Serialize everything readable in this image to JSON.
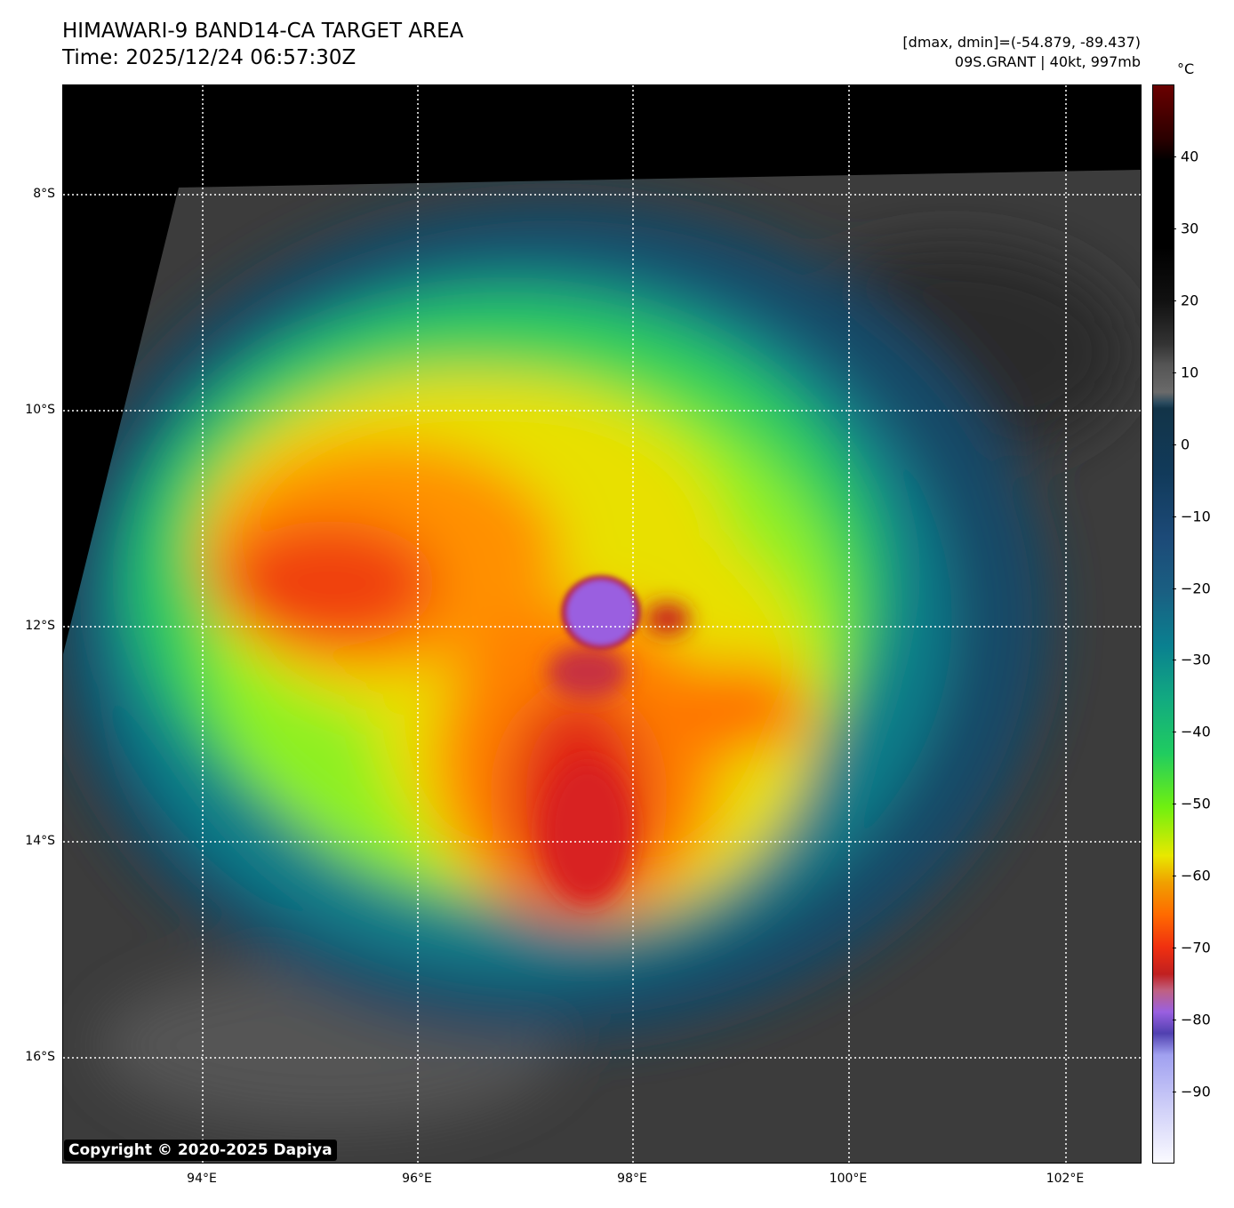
{
  "header": {
    "title": "HIMAWARI-9 BAND14-CA TARGET AREA",
    "time": "Time: 2025/12/24 06:57:30Z",
    "range": "[dmax, dmin]=(-54.879, -89.437)",
    "storm": "09S.GRANT | 40kt, 997mb"
  },
  "colorbar": {
    "unit": "°C",
    "ticks": [
      "40",
      "30",
      "20",
      "10",
      "0",
      "−10",
      "−20",
      "−30",
      "−40",
      "−50",
      "−60",
      "−70",
      "−80",
      "−90"
    ],
    "tick_values": [
      40,
      30,
      20,
      10,
      0,
      -10,
      -20,
      -30,
      -40,
      -50,
      -60,
      -70,
      -80,
      -90
    ],
    "min": -100,
    "max": 50
  },
  "axes": {
    "lat_labels": [
      "8°S",
      "10°S",
      "12°S",
      "14°S",
      "16°S"
    ],
    "lat_values": [
      -8,
      -10,
      -12,
      -14,
      -16
    ],
    "lon_labels": [
      "94°E",
      "96°E",
      "98°E",
      "100°E",
      "102°E"
    ],
    "lon_values": [
      94,
      96,
      98,
      100,
      102
    ],
    "lon_range": [
      92.7,
      102.73
    ],
    "lat_range": [
      -6.99,
      -16.98
    ]
  },
  "copyright": "Copyright © 2020-2025 Dapiya"
}
